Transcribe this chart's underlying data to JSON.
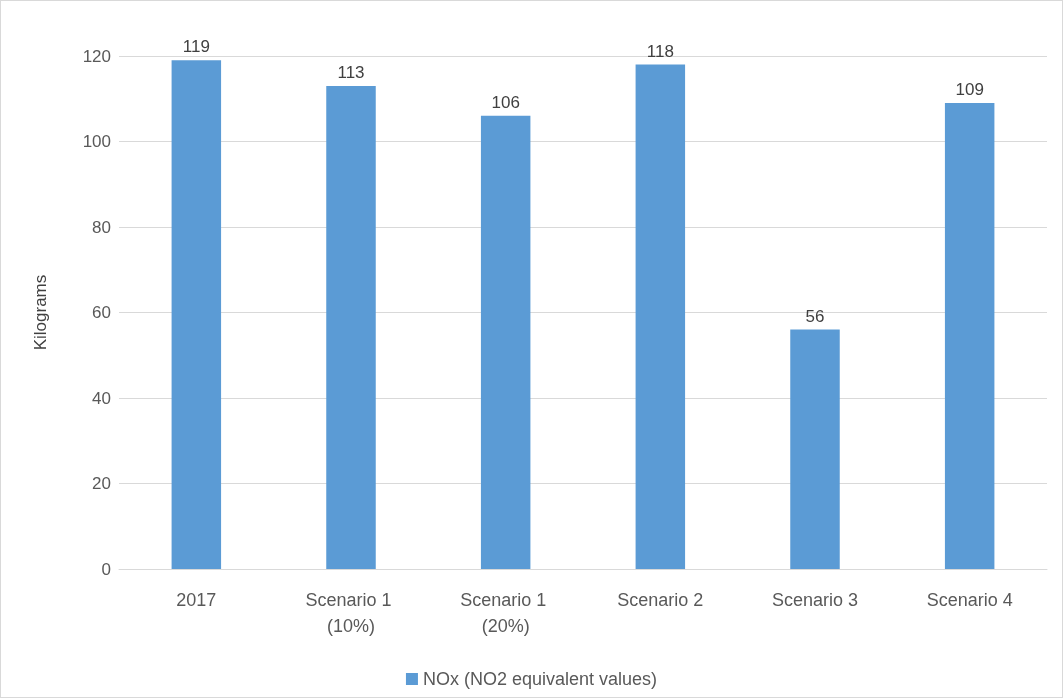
{
  "chart_data": {
    "type": "bar",
    "ylabel": "Kilograms",
    "categories": [
      "2017",
      "Scenario 1 (10%)",
      "Scenario 1 (20%)",
      "Scenario 2",
      "Scenario 3",
      "Scenario 4"
    ],
    "series": [
      {
        "name": "NOx (NO2 equivalent values)",
        "color": "#5b9bd5",
        "values": [
          119,
          113,
          106,
          118,
          56,
          109
        ]
      }
    ],
    "ylim": [
      0,
      120
    ],
    "yticks": [
      0,
      20,
      40,
      60,
      80,
      100,
      120
    ],
    "grid": "y",
    "legend": "bottom",
    "data_labels": true
  }
}
